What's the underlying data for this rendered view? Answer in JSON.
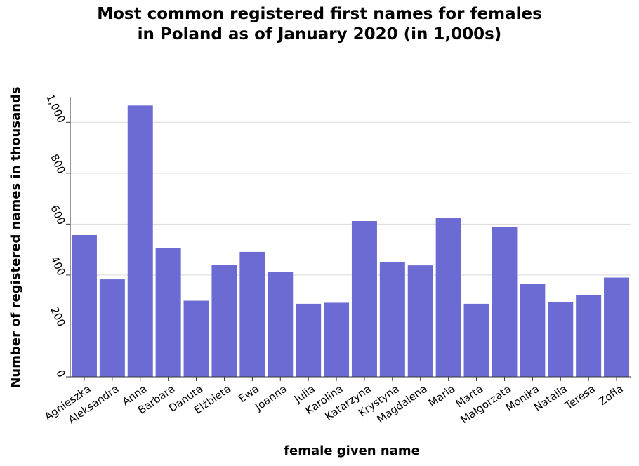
{
  "chart_data": {
    "type": "bar",
    "title_line1": "Most common registered first names for females",
    "title_line2": "in Poland as of January 2020 (in 1,000s)",
    "xlabel": "female given name",
    "ylabel": "Number of registered names in thousands",
    "categories": [
      "Agnieszka",
      "Aleksandra",
      "Anna",
      "Barbara",
      "Danuta",
      "Elżbieta",
      "Ewa",
      "Joanna",
      "Julia",
      "Karolina",
      "Katarzyna",
      "Krystyna",
      "Magdalena",
      "Maria",
      "Marta",
      "Małgorzata",
      "Monika",
      "Natalia",
      "Teresa",
      "Zofia"
    ],
    "values": [
      557,
      383,
      1066,
      507,
      299,
      440,
      491,
      411,
      287,
      291,
      612,
      451,
      438,
      624,
      287,
      589,
      364,
      293,
      322,
      390
    ],
    "yticks": [
      0,
      200,
      400,
      600,
      800,
      1000
    ],
    "ytick_labels": [
      "0",
      "200",
      "400",
      "600",
      "800",
      "1,000"
    ],
    "ylim": [
      0,
      1100
    ],
    "grid": true,
    "bar_color": "#6b6bd3",
    "grid_color": "#d9d9d9"
  }
}
